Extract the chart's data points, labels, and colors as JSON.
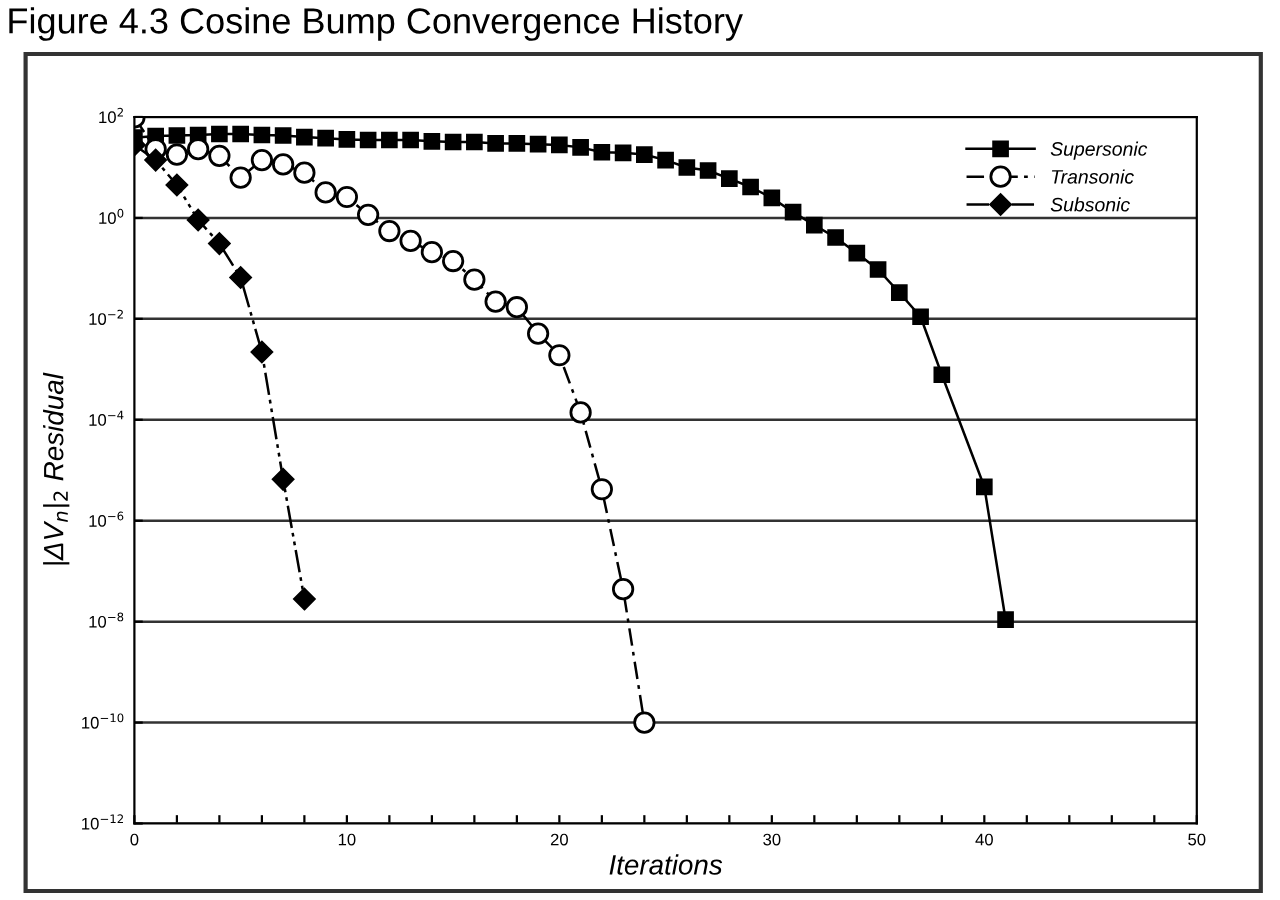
{
  "chart_data": {
    "type": "line",
    "title": "Figure 4.3 Cosine Bump Convergence History",
    "xlabel": "Iterations",
    "ylabel": "|ΔV$_{n}$|$_{2}$ Residual",
    "log": "y",
    "grid": "y",
    "legend": "top right",
    "xlim": [
      0,
      50
    ],
    "ylim": [
      1e-12,
      100
    ],
    "xticks": [
      0,
      {
        "value": 2,
        "label": null
      },
      {
        "value": 4,
        "label": null
      },
      {
        "value": 6,
        "label": null
      },
      {
        "value": 8,
        "label": null
      },
      10,
      {
        "value": 12,
        "label": null
      },
      {
        "value": 14,
        "label": null
      },
      {
        "value": 16,
        "label": null
      },
      {
        "value": 18,
        "label": null
      },
      20,
      {
        "value": 22,
        "label": null
      },
      {
        "value": 24,
        "label": null
      },
      {
        "value": 26,
        "label": null
      },
      {
        "value": 28,
        "label": null
      },
      30,
      {
        "value": 32,
        "label": null
      },
      {
        "value": 34,
        "label": null
      },
      {
        "value": 36,
        "label": null
      },
      {
        "value": 38,
        "label": null
      },
      40,
      {
        "value": 42,
        "label": null
      },
      {
        "value": 44,
        "label": null
      },
      {
        "value": 46,
        "label": null
      },
      {
        "value": 48,
        "label": null
      },
      50
    ],
    "yticks": [
      {
        "value": 1e-12,
        "label": "10$^{−12}$"
      },
      {
        "value": 1e-10,
        "label": "10$^{−10}$"
      },
      {
        "value": 1e-08,
        "label": "10$^{−8}$"
      },
      {
        "value": 1e-06,
        "label": "10$^{−6}$"
      },
      {
        "value": 0.0001,
        "label": "10$^{−4}$"
      },
      {
        "value": 0.01,
        "label": "10$^{−2}$"
      },
      {
        "value": 1,
        "label": "10$^{0}$"
      },
      {
        "value": 100,
        "label": "10$^{2}$"
      }
    ],
    "series": [
      {
        "name": "Supersonic",
        "color": "#000000",
        "marker": "square",
        "line_style": "solid",
        "x": [
          0,
          1,
          2,
          3,
          4,
          5,
          6,
          7,
          8,
          9,
          10,
          11,
          12,
          13,
          14,
          15,
          16,
          17,
          18,
          19,
          20,
          21,
          22,
          23,
          24,
          25,
          26,
          27,
          28,
          29,
          30,
          31,
          32,
          33,
          34,
          35,
          36,
          37,
          38,
          40,
          41
        ],
        "values": [
          39,
          42,
          43,
          44,
          46,
          46,
          44,
          43,
          40,
          38,
          36,
          35,
          35,
          35,
          33,
          32,
          32,
          30,
          30,
          29,
          28,
          25,
          20,
          19.5,
          18,
          14,
          10,
          8.7,
          6.0,
          4.1,
          2.5,
          1.3,
          0.72,
          0.41,
          0.2,
          0.095,
          0.033,
          0.011,
          0.00078,
          4.7e-06,
          1.1e-08
        ]
      },
      {
        "name": "Transonic",
        "color": "#000000",
        "marker": "circle",
        "line_style": "dashed",
        "x": [
          0,
          1,
          2,
          3,
          4,
          5,
          6,
          7,
          8,
          9,
          10,
          11,
          12,
          13,
          14,
          15,
          16,
          17,
          18,
          19,
          20,
          21,
          22,
          23,
          24
        ],
        "values": [
          98,
          23,
          18,
          23,
          17,
          6.3,
          14,
          11.5,
          7.9,
          3.2,
          2.6,
          1.15,
          0.55,
          0.35,
          0.21,
          0.14,
          0.06,
          0.022,
          0.017,
          0.0051,
          0.0019,
          0.00014,
          4.2e-06,
          4.4e-08,
          1e-10
        ]
      },
      {
        "name": "Subsonic",
        "color": "#000000",
        "marker": "diamond",
        "line_style": "dotted",
        "x": [
          0,
          1,
          2,
          3,
          4,
          5,
          6,
          7,
          8
        ],
        "values": [
          28,
          14,
          4.5,
          0.91,
          0.31,
          0.066,
          0.0022,
          6.6e-06,
          2.8e-08
        ]
      }
    ]
  }
}
